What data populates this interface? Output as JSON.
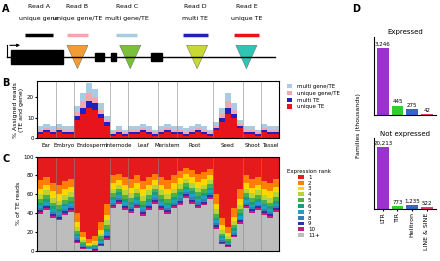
{
  "diagram": {
    "label": "A",
    "reads": [
      {
        "name": "Read A",
        "type": "unique gene",
        "color": "#000000"
      },
      {
        "name": "Read B",
        "type": "unique gene/TE",
        "color": "#f4a6b0"
      },
      {
        "name": "Read C",
        "type": "multi gene/TE",
        "color": "#a9cce3"
      },
      {
        "name": "Read D",
        "type": "multi TE",
        "color": "#2020c0"
      },
      {
        "name": "Read E",
        "type": "unique TE",
        "color": "#e8141c"
      }
    ]
  },
  "chart_data": [
    {
      "label": "B",
      "type": "bar",
      "stacked": true,
      "grid": false,
      "ylabel": "% Assigned reads\n(TE and gene)",
      "ylim": [
        0,
        28
      ],
      "yticks": [
        0,
        10,
        20
      ],
      "tick_labels": "y",
      "legend": "upper left",
      "groups": [
        {
          "name": "Ear",
          "size": 3
        },
        {
          "name": "Embryo",
          "size": 3
        },
        {
          "name": "Endosperm",
          "size": 6
        },
        {
          "name": "Internode",
          "size": 3
        },
        {
          "name": "Leaf",
          "size": 5
        },
        {
          "name": "Meristem",
          "size": 3
        },
        {
          "name": "Root",
          "size": 6
        },
        {
          "name": "Seed",
          "size": 5
        },
        {
          "name": "Shoot",
          "size": 3
        },
        {
          "name": "Tassel",
          "size": 3
        }
      ],
      "series": [
        {
          "name": "unique TE",
          "color": "#e8141c",
          "values": [
            2,
            3,
            2,
            3,
            2,
            2,
            9,
            12,
            15,
            14,
            10,
            6,
            1,
            2,
            1,
            2,
            2,
            3,
            2,
            1,
            2,
            3,
            2,
            2,
            1,
            2,
            3,
            2,
            1,
            4,
            8,
            12,
            10,
            5,
            2,
            2,
            1,
            3,
            2,
            2
          ]
        },
        {
          "name": "multi TE",
          "color": "#2020c0",
          "values": [
            1,
            1,
            1,
            1,
            1,
            1,
            2,
            3,
            3,
            3,
            2,
            2,
            1,
            1,
            1,
            1,
            1,
            1,
            1,
            1,
            1,
            1,
            1,
            1,
            1,
            1,
            1,
            1,
            1,
            1,
            2,
            3,
            2,
            1,
            1,
            1,
            1,
            1,
            1,
            1
          ]
        },
        {
          "name": "unique gene/TE",
          "color": "#f4a6b0",
          "values": [
            1,
            1,
            1,
            1,
            1,
            1,
            2,
            3,
            4,
            3,
            2,
            1,
            1,
            1,
            1,
            1,
            1,
            1,
            1,
            1,
            1,
            1,
            1,
            1,
            1,
            1,
            1,
            1,
            1,
            1,
            2,
            3,
            2,
            1,
            1,
            1,
            1,
            1,
            1,
            1
          ]
        },
        {
          "name": "multi gene/TE",
          "color": "#a9cce3",
          "values": [
            2,
            2,
            2,
            2,
            2,
            2,
            3,
            4,
            5,
            4,
            3,
            2,
            1,
            2,
            1,
            2,
            2,
            2,
            2,
            1,
            2,
            2,
            2,
            2,
            2,
            2,
            2,
            2,
            1,
            2,
            3,
            4,
            3,
            2,
            2,
            2,
            1,
            2,
            2,
            2
          ]
        }
      ]
    },
    {
      "label": "C",
      "type": "bar",
      "stacked": true,
      "grid": false,
      "ylabel": "% of TE reads",
      "ylim": [
        0,
        100
      ],
      "yticks": [
        0,
        20,
        40,
        60,
        80,
        100
      ],
      "tick_labels": "y",
      "legend": "center left",
      "legend_title": "Expression rank",
      "series": [
        {
          "name": "1",
          "color": "#e41a1c",
          "values": [
            25,
            22,
            28,
            30,
            26,
            24,
            60,
            80,
            88,
            85,
            70,
            50,
            20,
            18,
            22,
            24,
            20,
            26,
            22,
            18,
            22,
            25,
            20,
            15,
            12,
            14,
            18,
            16,
            13,
            40,
            65,
            75,
            55,
            35,
            20,
            24,
            22,
            26,
            28,
            24
          ]
        },
        {
          "name": "2",
          "color": "#ff7f00",
          "values": [
            9,
            8,
            9,
            10,
            9,
            8,
            10,
            6,
            4,
            5,
            8,
            12,
            8,
            7,
            8,
            9,
            8,
            9,
            8,
            7,
            8,
            9,
            8,
            8,
            7,
            8,
            9,
            8,
            7,
            10,
            8,
            6,
            9,
            10,
            8,
            9,
            8,
            9,
            9,
            8
          ]
        },
        {
          "name": "3",
          "color": "#ffd700",
          "values": [
            6,
            6,
            7,
            7,
            6,
            6,
            5,
            3,
            2,
            2,
            4,
            6,
            6,
            5,
            6,
            6,
            6,
            7,
            6,
            5,
            6,
            6,
            6,
            6,
            5,
            6,
            6,
            6,
            5,
            6,
            5,
            4,
            5,
            6,
            6,
            6,
            6,
            6,
            7,
            6
          ]
        },
        {
          "name": "4",
          "color": "#b5d43b",
          "values": [
            5,
            5,
            5,
            5,
            5,
            5,
            4,
            2,
            1,
            2,
            3,
            5,
            5,
            4,
            5,
            5,
            5,
            5,
            5,
            4,
            5,
            5,
            5,
            5,
            4,
            5,
            5,
            5,
            4,
            5,
            4,
            3,
            4,
            5,
            5,
            5,
            5,
            5,
            5,
            5
          ]
        },
        {
          "name": "5",
          "color": "#4daf4a",
          "values": [
            4,
            4,
            4,
            4,
            4,
            4,
            3,
            2,
            1,
            1,
            3,
            4,
            4,
            4,
            4,
            4,
            4,
            4,
            4,
            4,
            4,
            4,
            4,
            4,
            4,
            4,
            4,
            4,
            4,
            4,
            3,
            2,
            3,
            4,
            4,
            4,
            4,
            4,
            4,
            4
          ]
        },
        {
          "name": "6",
          "color": "#1b9e77",
          "values": [
            3,
            3,
            3,
            3,
            3,
            3,
            3,
            1,
            1,
            1,
            2,
            3,
            3,
            3,
            3,
            3,
            3,
            3,
            3,
            3,
            3,
            3,
            3,
            3,
            3,
            3,
            3,
            3,
            3,
            3,
            2,
            2,
            3,
            3,
            3,
            3,
            3,
            3,
            3,
            3
          ]
        },
        {
          "name": "7",
          "color": "#1fa0c8",
          "values": [
            3,
            3,
            3,
            3,
            3,
            3,
            2,
            1,
            1,
            1,
            2,
            3,
            3,
            3,
            3,
            3,
            3,
            3,
            3,
            3,
            3,
            3,
            3,
            3,
            3,
            3,
            3,
            3,
            3,
            3,
            2,
            1,
            2,
            3,
            3,
            3,
            3,
            3,
            3,
            3
          ]
        },
        {
          "name": "8",
          "color": "#377eb8",
          "values": [
            2,
            2,
            2,
            2,
            2,
            2,
            2,
            1,
            0,
            1,
            1,
            2,
            2,
            2,
            2,
            2,
            2,
            2,
            2,
            2,
            2,
            2,
            2,
            3,
            2,
            3,
            3,
            3,
            2,
            2,
            2,
            1,
            2,
            2,
            2,
            2,
            2,
            2,
            2,
            2
          ]
        },
        {
          "name": "9",
          "color": "#3030a0",
          "values": [
            2,
            2,
            2,
            2,
            2,
            2,
            2,
            1,
            0,
            1,
            1,
            2,
            2,
            2,
            2,
            2,
            2,
            2,
            2,
            2,
            2,
            2,
            2,
            2,
            2,
            2,
            2,
            2,
            2,
            2,
            1,
            1,
            2,
            2,
            2,
            2,
            2,
            2,
            2,
            2
          ]
        },
        {
          "name": "10",
          "color": "#c51b7d",
          "values": [
            2,
            2,
            2,
            2,
            2,
            2,
            1,
            1,
            0,
            1,
            1,
            2,
            2,
            2,
            2,
            2,
            2,
            2,
            2,
            2,
            2,
            2,
            2,
            2,
            2,
            2,
            2,
            2,
            2,
            2,
            1,
            1,
            1,
            2,
            2,
            2,
            2,
            2,
            2,
            2
          ]
        },
        {
          "name": "11+",
          "color": "#bdbdbd",
          "values": [
            39,
            43,
            35,
            32,
            38,
            41,
            8,
            2,
            2,
            0,
            5,
            11,
            45,
            50,
            43,
            40,
            45,
            37,
            43,
            50,
            43,
            39,
            45,
            49,
            56,
            50,
            45,
            48,
            55,
            23,
            7,
            4,
            14,
            28,
            45,
            40,
            43,
            38,
            35,
            41
          ]
        }
      ]
    },
    {
      "label": "D",
      "type": "bar",
      "title": "Expressed",
      "ylabel": "Families (thousands)",
      "categories": [
        null,
        null,
        null,
        null
      ],
      "values": [
        3.246,
        0.445,
        0.275,
        0.042
      ],
      "value_labels": [
        "3,246",
        "445",
        "275",
        "42"
      ],
      "colors": [
        "#9933cc",
        "#33cc33",
        "#3366cc",
        "#ee3377"
      ],
      "data_labels": true,
      "tick_labels": false,
      "ylim": [
        0,
        3.8
      ],
      "yticks": []
    },
    {
      "type": "bar",
      "title": "Not expressed",
      "categories": [
        "LTR",
        "TIR",
        "Helitron",
        "LINE & SINE"
      ],
      "values": [
        20.213,
        0.773,
        1.235,
        0.522
      ],
      "value_labels": [
        "20,213",
        "773",
        "1,235",
        "522"
      ],
      "colors": [
        "#9933cc",
        "#33cc33",
        "#3366cc",
        "#ee3377"
      ],
      "data_labels": true,
      "tick_labels": "x",
      "ylim": [
        0,
        23
      ],
      "yticks": []
    }
  ]
}
